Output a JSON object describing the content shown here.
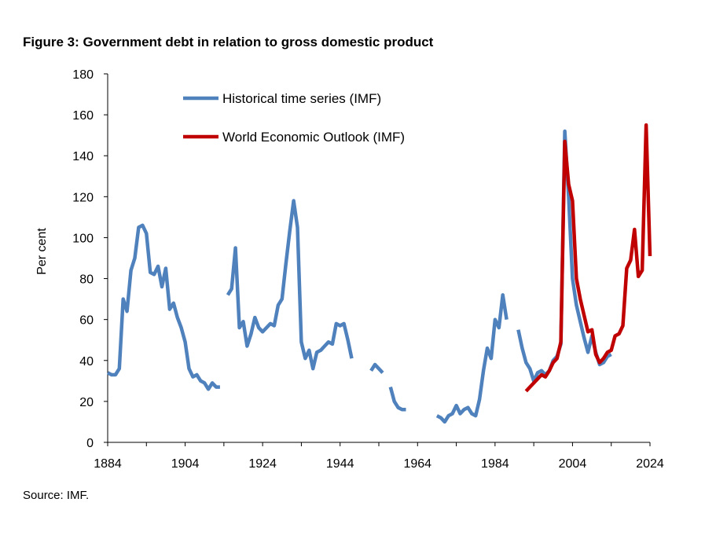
{
  "figure": {
    "title": "Figure 3: Government debt in relation to gross domestic product",
    "source": "Source: IMF."
  },
  "chart_data": {
    "type": "line",
    "title": "Figure 3: Government debt in relation to gross domestic product",
    "xlabel": "",
    "ylabel": "Per cent",
    "xlim": [
      1884,
      2024
    ],
    "ylim": [
      0,
      180
    ],
    "xticks": [
      1884,
      1904,
      1924,
      1944,
      1964,
      1984,
      2004,
      2024
    ],
    "yticks": [
      0,
      20,
      40,
      60,
      80,
      100,
      120,
      140,
      160,
      180
    ],
    "grid": false,
    "legend_position": "top-center",
    "series": [
      {
        "name": "Historical time series (IMF)",
        "color": "#4F81BD",
        "segments": [
          [
            [
              1884,
              34
            ],
            [
              1885,
              33
            ],
            [
              1886,
              33
            ],
            [
              1887,
              36
            ],
            [
              1888,
              70
            ],
            [
              1889,
              64
            ],
            [
              1890,
              84
            ],
            [
              1891,
              90
            ],
            [
              1892,
              105
            ],
            [
              1893,
              106
            ],
            [
              1894,
              102
            ],
            [
              1895,
              83
            ],
            [
              1896,
              82
            ],
            [
              1897,
              86
            ],
            [
              1898,
              76
            ],
            [
              1899,
              85
            ],
            [
              1900,
              65
            ],
            [
              1901,
              68
            ],
            [
              1902,
              61
            ],
            [
              1903,
              56
            ],
            [
              1904,
              49
            ],
            [
              1905,
              36
            ],
            [
              1906,
              32
            ],
            [
              1907,
              33
            ],
            [
              1908,
              30
            ],
            [
              1909,
              29
            ],
            [
              1910,
              26
            ],
            [
              1911,
              29
            ],
            [
              1912,
              27
            ],
            [
              1913,
              27
            ]
          ],
          [
            [
              1915,
              72
            ],
            [
              1916,
              75
            ],
            [
              1917,
              95
            ],
            [
              1918,
              56
            ],
            [
              1919,
              59
            ],
            [
              1920,
              47
            ],
            [
              1921,
              53
            ],
            [
              1922,
              61
            ],
            [
              1923,
              56
            ],
            [
              1924,
              54
            ],
            [
              1925,
              56
            ],
            [
              1926,
              58
            ],
            [
              1927,
              57
            ],
            [
              1928,
              67
            ],
            [
              1929,
              70
            ],
            [
              1930,
              87
            ],
            [
              1931,
              103
            ],
            [
              1932,
              118
            ],
            [
              1933,
              105
            ],
            [
              1934,
              49
            ],
            [
              1935,
              41
            ],
            [
              1936,
              45
            ],
            [
              1937,
              36
            ],
            [
              1938,
              44
            ],
            [
              1939,
              45
            ],
            [
              1940,
              47
            ],
            [
              1941,
              49
            ],
            [
              1942,
              48
            ],
            [
              1943,
              58
            ],
            [
              1944,
              57
            ],
            [
              1945,
              58
            ],
            [
              1946,
              50
            ],
            [
              1947,
              41
            ]
          ],
          [
            [
              1952,
              35
            ],
            [
              1953,
              38
            ],
            [
              1954,
              36
            ],
            [
              1955,
              34
            ]
          ],
          [
            [
              1957,
              27
            ],
            [
              1958,
              20
            ],
            [
              1959,
              17
            ],
            [
              1960,
              16
            ],
            [
              1961,
              16
            ]
          ],
          [
            [
              1969,
              13
            ],
            [
              1970,
              12
            ],
            [
              1971,
              10
            ],
            [
              1972,
              13
            ],
            [
              1973,
              14
            ],
            [
              1974,
              18
            ],
            [
              1975,
              14
            ],
            [
              1976,
              16
            ],
            [
              1977,
              17
            ],
            [
              1978,
              14
            ],
            [
              1979,
              13
            ],
            [
              1980,
              21
            ],
            [
              1981,
              35
            ],
            [
              1982,
              46
            ],
            [
              1983,
              41
            ],
            [
              1984,
              60
            ],
            [
              1985,
              56
            ],
            [
              1986,
              72
            ],
            [
              1987,
              60
            ]
          ],
          [
            [
              1990,
              55
            ],
            [
              1991,
              46
            ],
            [
              1992,
              39
            ],
            [
              1993,
              36
            ],
            [
              1994,
              30
            ],
            [
              1995,
              34
            ],
            [
              1996,
              35
            ],
            [
              1997,
              33
            ],
            [
              1998,
              35
            ],
            [
              1999,
              40
            ],
            [
              2000,
              42
            ],
            [
              2001,
              48
            ],
            [
              2002,
              152
            ],
            [
              2003,
              120
            ],
            [
              2004,
              80
            ],
            [
              2005,
              67
            ],
            [
              2006,
              59
            ],
            [
              2007,
              51
            ],
            [
              2008,
              44
            ],
            [
              2009,
              52
            ],
            [
              2010,
              44
            ],
            [
              2011,
              38
            ],
            [
              2012,
              39
            ],
            [
              2013,
              42
            ],
            [
              2014,
              43
            ]
          ]
        ]
      },
      {
        "name": "World Economic Outlook (IMF)",
        "color": "#C00000",
        "segments": [
          [
            [
              1992,
              25
            ],
            [
              1993,
              27
            ],
            [
              1994,
              29
            ],
            [
              1995,
              31
            ],
            [
              1996,
              33
            ],
            [
              1997,
              32
            ],
            [
              1998,
              35
            ],
            [
              1999,
              39
            ],
            [
              2000,
              41
            ],
            [
              2001,
              49
            ],
            [
              2002,
              147
            ],
            [
              2003,
              126
            ],
            [
              2004,
              118
            ],
            [
              2005,
              80
            ],
            [
              2006,
              70
            ],
            [
              2007,
              62
            ],
            [
              2008,
              54
            ],
            [
              2009,
              55
            ],
            [
              2010,
              43
            ],
            [
              2011,
              39
            ],
            [
              2012,
              41
            ],
            [
              2013,
              44
            ],
            [
              2014,
              45
            ],
            [
              2015,
              52
            ],
            [
              2016,
              53
            ],
            [
              2017,
              57
            ],
            [
              2018,
              85
            ],
            [
              2019,
              89
            ],
            [
              2020,
              104
            ],
            [
              2021,
              81
            ],
            [
              2022,
              84
            ],
            [
              2023,
              155
            ],
            [
              2024,
              91
            ]
          ]
        ]
      }
    ]
  }
}
